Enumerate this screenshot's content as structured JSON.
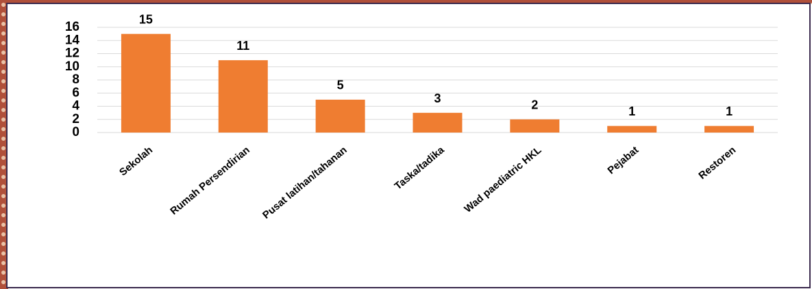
{
  "chart_data": {
    "type": "bar",
    "categories": [
      "Sekolah",
      "Rumah Persendirian",
      "Pusat latihan/tahanan",
      "Taska/tadika",
      "Wad paediatric HKL",
      "Pejabat",
      "Restoren"
    ],
    "values": [
      15,
      11,
      5,
      3,
      2,
      1,
      1
    ],
    "color": "#ef7d31",
    "ylim": [
      0,
      16
    ],
    "yticks": [
      0,
      2,
      4,
      6,
      8,
      10,
      12,
      14,
      16
    ],
    "grid": true
  }
}
